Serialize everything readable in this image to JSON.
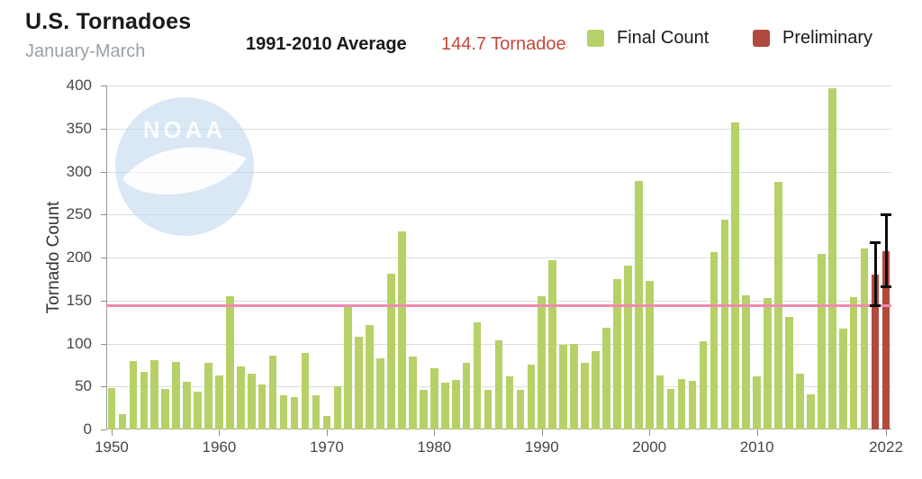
{
  "header": {
    "title": "U.S. Tornadoes",
    "subtitle": "January-March",
    "average_label": "1991-2010 Average",
    "average_value": "144.7 Tornadoes",
    "average_color": "#bf4a3a",
    "legend": [
      {
        "label": "Final Count",
        "color": "#b6d168"
      },
      {
        "label": "Preliminary",
        "color": "#b04a3e"
      }
    ]
  },
  "watermark": {
    "text": "NOAA",
    "circle_color": "#bdd5ee"
  },
  "chart_data": {
    "type": "bar",
    "title": "U.S. Tornadoes",
    "subtitle": "January-March",
    "ylabel": "Tornado Count",
    "xlabel": "",
    "ylim": [
      0,
      400
    ],
    "ytick_step": 50,
    "x_range": [
      1950,
      2022
    ],
    "xticks": [
      1950,
      1960,
      1970,
      1980,
      1990,
      2000,
      2010,
      2022
    ],
    "grid": "horizontal",
    "legend_position": "top-right",
    "average_line": {
      "value": 144.7,
      "color": "#f08bb1",
      "label": "1991-2010 Average"
    },
    "series": [
      {
        "name": "Final Count",
        "color": "#b6d168",
        "start_year": 1950,
        "values": [
          48,
          18,
          80,
          67,
          81,
          47,
          79,
          56,
          44,
          77,
          63,
          155,
          73,
          65,
          52,
          86,
          40,
          38,
          89,
          40,
          16,
          50,
          142,
          108,
          122,
          83,
          181,
          230,
          85,
          46,
          71,
          54,
          58,
          78,
          125,
          46,
          104,
          62,
          46,
          75,
          155,
          197,
          98,
          99,
          78,
          91,
          118,
          175,
          191,
          289,
          173,
          63,
          47,
          59,
          57,
          103,
          206,
          244,
          357,
          156,
          62,
          153,
          288,
          131,
          65,
          41,
          204,
          397,
          117,
          154,
          210
        ]
      },
      {
        "name": "Preliminary",
        "color": "#b04a3e",
        "start_year": 2021,
        "values": [
          180,
          207
        ]
      }
    ],
    "error_bars": [
      {
        "year": 2021,
        "low": 143,
        "high": 218
      },
      {
        "year": 2022,
        "low": 165,
        "high": 250
      }
    ]
  }
}
